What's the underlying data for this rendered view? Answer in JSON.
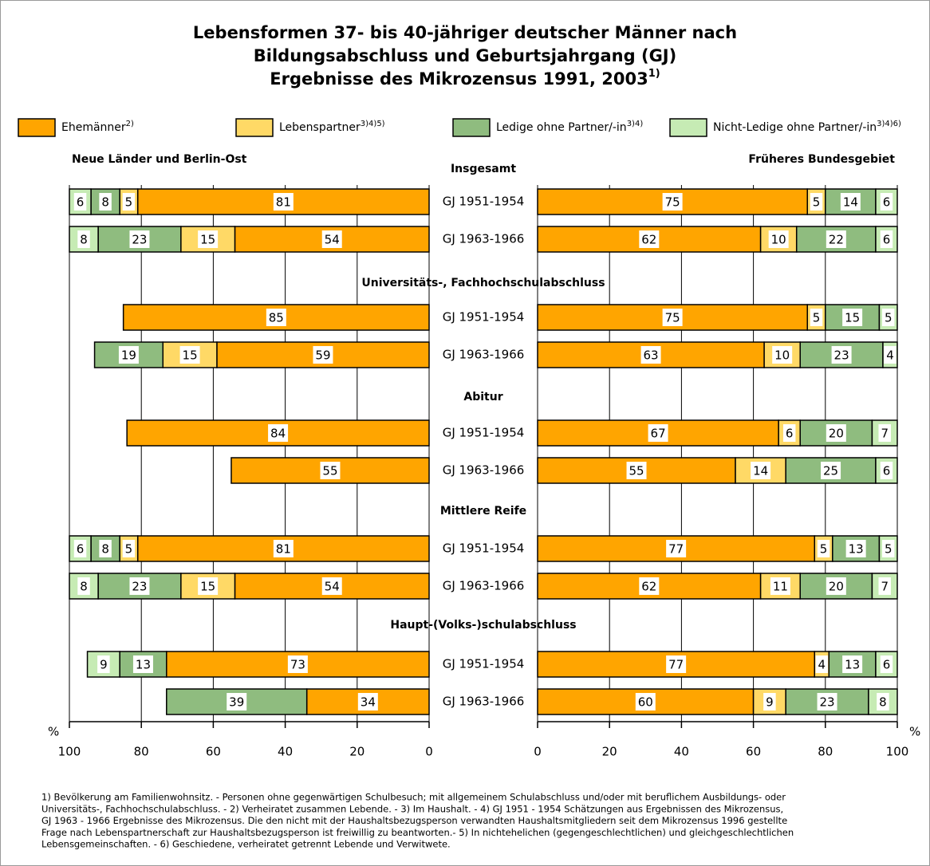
{
  "title": [
    "Lebensformen 37- bis 40-jähriger deutscher Männer nach",
    "Bildungsabschluss und Geburtsjahrgang (GJ)",
    "Ergebnisse des Mikrozensus 1991, 2003"
  ],
  "title_note": "1)",
  "groups": [
    "Insgesamt",
    "Universitäts-, Fachhochschulabschluss",
    "Abitur",
    "Mittlere Reife",
    "Haupt-(Volks-)schulabschluss"
  ],
  "chart_data": [
    {
      "type": "bar",
      "title": "Neue Länder und Berlin-Ost",
      "axis_label": "%",
      "categories": [
        "GJ 1951-1954",
        "GJ 1963-1966",
        "GJ 1951-1954",
        "GJ 1963-1966",
        "GJ 1951-1954",
        "GJ 1963-1966",
        "GJ 1951-1954",
        "GJ 1963-1966",
        "GJ 1951-1954",
        "GJ 1963-1966"
      ],
      "xlim": [
        0,
        100
      ],
      "xticks": [
        0,
        20,
        40,
        60,
        80,
        100
      ],
      "grid": true,
      "series": [
        {
          "name": "Ehemänner",
          "name_note": "2)",
          "color": "#ffa500",
          "values": [
            81,
            54,
            85,
            59,
            84,
            55,
            81,
            54,
            73,
            34
          ]
        },
        {
          "name": "Lebenspartner",
          "name_note": "3)4)5)",
          "color": "#ffd966",
          "values": [
            5,
            15,
            null,
            15,
            null,
            null,
            5,
            15,
            null,
            null
          ]
        },
        {
          "name": "Ledige ohne Partner/-in",
          "name_note": "3)4)",
          "color": "#8fbc7f",
          "values": [
            8,
            23,
            null,
            19,
            null,
            null,
            8,
            23,
            13,
            39
          ]
        },
        {
          "name": "Nicht-Ledige ohne Partner/-in",
          "name_note": "3)4)6)",
          "color": "#c6ebb4",
          "values": [
            6,
            8,
            null,
            null,
            null,
            null,
            6,
            8,
            9,
            null
          ]
        }
      ]
    },
    {
      "type": "bar",
      "title": "Früheres Bundesgebiet",
      "axis_label": "%",
      "xlim": [
        0,
        100
      ],
      "xticks": [
        0,
        20,
        40,
        60,
        80,
        100
      ],
      "grid": true,
      "series": [
        {
          "values": [
            75,
            62,
            75,
            63,
            67,
            55,
            77,
            62,
            77,
            60
          ]
        },
        {
          "values": [
            5,
            10,
            5,
            10,
            6,
            14,
            5,
            11,
            4,
            9
          ]
        },
        {
          "values": [
            14,
            22,
            15,
            23,
            20,
            25,
            13,
            20,
            13,
            23
          ]
        },
        {
          "values": [
            6,
            6,
            5,
            4,
            7,
            6,
            5,
            7,
            6,
            8
          ]
        }
      ]
    }
  ],
  "footnotes": [
    "1) Bevölkerung am Familienwohnsitz. - Personen ohne gegenwärtigen Schulbesuch; mit allgemeinem Schulabschluss und/oder mit beruflichem Ausbildungs- oder",
    "Universitäts-, Fachhochschulabschluss. - 2) Verheiratet zusammen Lebende. - 3) Im Haushalt. - 4)  GJ 1951 - 1954  Schätzungen aus Ergebnissen des Mikrozensus,",
    "GJ 1963 - 1966 Ergebnisse des Mikrozensus. Die den nicht mit der Haushaltsbezugsperson verwandten Haushaltsmitgliedern seit dem Mikrozensus 1996 gestellte",
    "Frage nach Lebenspartnerschaft zur Haushaltsbezugsperson ist freiwillig zu beantworten.- 5) In nichtehelichen (gegengeschlechtlichen) und gleichgeschlechtlichen",
    "Lebensgemeinschaften. - 6) Geschiedene, verheiratet getrennt Lebende und Verwitwete."
  ]
}
